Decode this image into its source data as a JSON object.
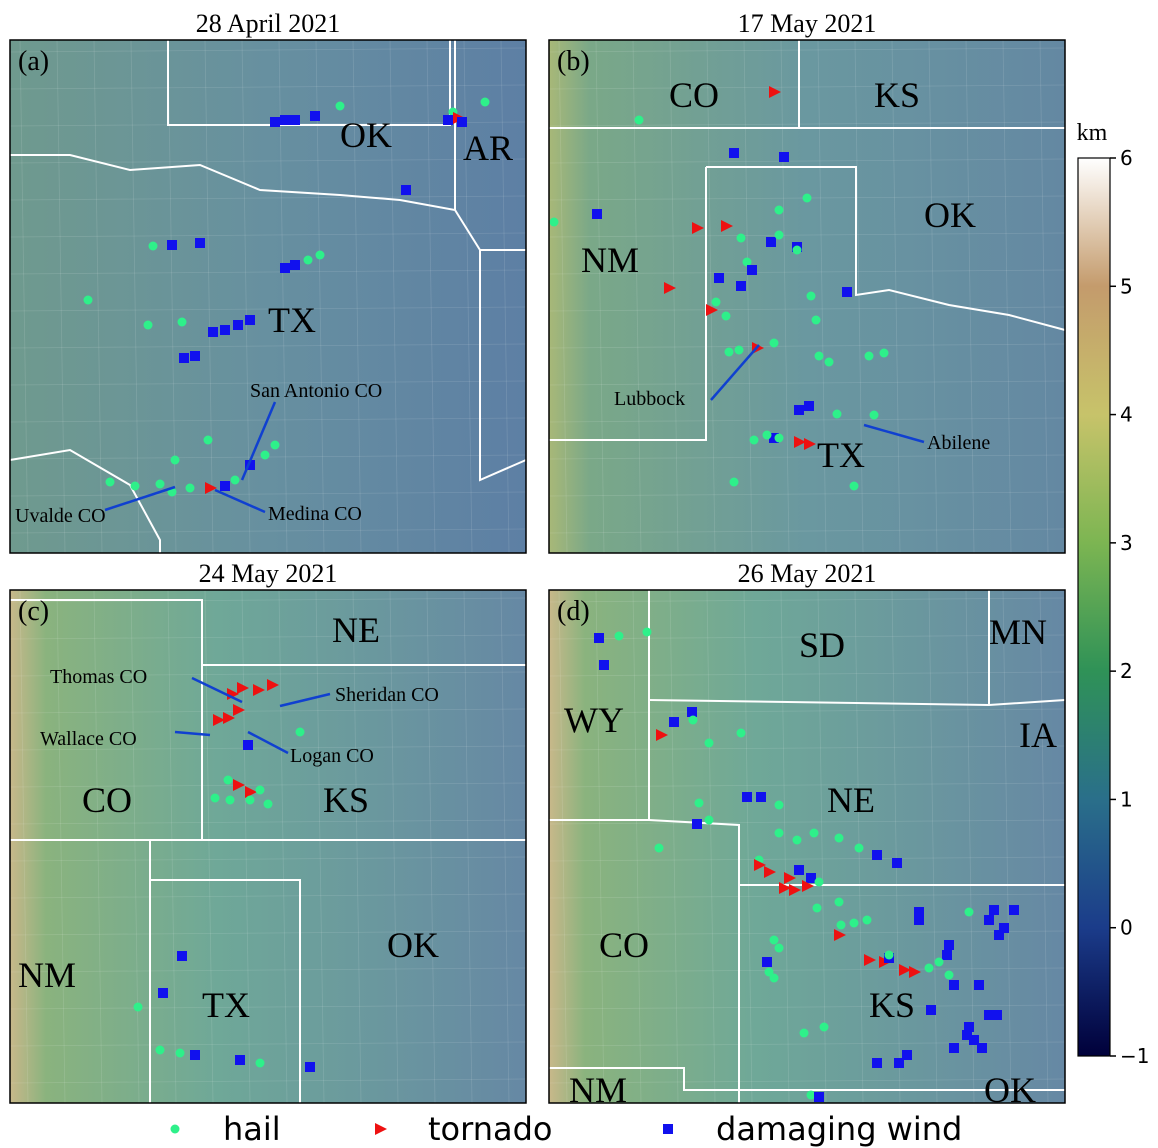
{
  "panels": [
    {
      "title": "28 April 2021",
      "label": "(a)",
      "places": [
        "OK",
        "AR",
        "TX"
      ],
      "annotations": [
        "San Antonio CO",
        "Uvalde CO",
        "Medina CO"
      ]
    },
    {
      "title": "17 May 2021",
      "label": "(b)",
      "places": [
        "CO",
        "KS",
        "OK",
        "NM",
        "TX"
      ],
      "annotations": [
        "Lubbock",
        "Abilene"
      ]
    },
    {
      "title": "24 May 2021",
      "label": "(c)",
      "places": [
        "NE",
        "KS",
        "CO",
        "OK",
        "NM",
        "TX"
      ],
      "annotations": [
        "Thomas CO",
        "Sheridan CO",
        "Wallace CO",
        "Logan CO"
      ]
    },
    {
      "title": "26 May 2021",
      "label": "(d)",
      "places": [
        "SD",
        "MN",
        "WY",
        "IA",
        "NE",
        "CO",
        "KS",
        "NM",
        "OK"
      ],
      "annotations": []
    }
  ],
  "colorbar": {
    "unit": "km",
    "lim": [
      -1,
      6
    ],
    "ticks": [
      {
        "value": -1,
        "label": "−1"
      },
      0,
      1,
      2,
      3,
      4,
      5,
      6
    ]
  },
  "legend": [
    "hail",
    "tornado",
    "damaging wind"
  ]
}
